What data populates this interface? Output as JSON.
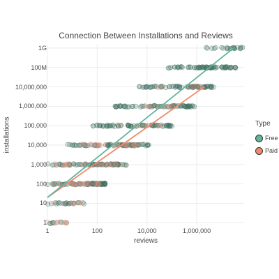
{
  "chart_data": {
    "type": "scatter",
    "title": "Connection Between Installations and Reviews",
    "xlabel": "reviews",
    "ylabel": "installations",
    "x_scale": "log",
    "y_scale": "log",
    "xlim": [
      1,
      80000000
    ],
    "ylim": [
      0.8,
      1500000000
    ],
    "x_ticks": [
      {
        "value": 1,
        "label": "1"
      },
      {
        "value": 100,
        "label": "100"
      },
      {
        "value": 10000,
        "label": "10,000"
      },
      {
        "value": 1000000,
        "label": "1,000,000"
      }
    ],
    "y_ticks": [
      {
        "value": 1,
        "label": "1"
      },
      {
        "value": 10,
        "label": "10"
      },
      {
        "value": 100,
        "label": "100"
      },
      {
        "value": 1000,
        "label": "1,000"
      },
      {
        "value": 10000,
        "label": "10,000"
      },
      {
        "value": 100000,
        "label": "100,000"
      },
      {
        "value": 1000000,
        "label": "1,000,000"
      },
      {
        "value": 10000000,
        "label": "10,000,000"
      },
      {
        "value": 100000000,
        "label": "100M"
      },
      {
        "value": 1000000000,
        "label": "1G"
      }
    ],
    "grid": true,
    "legend": {
      "title": "Type",
      "position": "right"
    },
    "colors": {
      "Free": "#5fb49c",
      "Paid": "#f08a6c",
      "free_point": "#3c6e5f",
      "paid_point": "#d98a7a",
      "grid": "#ebebeb"
    },
    "series": [
      {
        "name": "Free",
        "bands": [
          {
            "y": 1,
            "x_range": [
              1,
              6
            ],
            "density": "low"
          },
          {
            "y": 10,
            "x_range": [
              1,
              30
            ],
            "density": "medium"
          },
          {
            "y": 100,
            "x_range": [
              1,
              250
            ],
            "density": "high"
          },
          {
            "y": 1000,
            "x_range": [
              1,
              1500
            ],
            "density": "high"
          },
          {
            "y": 10000,
            "x_range": [
              5,
              12000
            ],
            "density": "high"
          },
          {
            "y": 100000,
            "x_range": [
              60,
              120000
            ],
            "density": "high"
          },
          {
            "y": 1000000,
            "x_range": [
              500,
              900000
            ],
            "density": "high"
          },
          {
            "y": 10000000,
            "x_range": [
              5000,
              5000000
            ],
            "density": "high"
          },
          {
            "y": 100000000,
            "x_range": [
              60000,
              40000000
            ],
            "density": "high"
          },
          {
            "y": 1000000000,
            "x_range": [
              2000000,
              80000000
            ],
            "density": "medium"
          }
        ],
        "trend_line": {
          "x": [
            1,
            30000000
          ],
          "y": [
            20,
            1000000000
          ]
        }
      },
      {
        "name": "Paid",
        "bands": [
          {
            "y": 1,
            "x_range": [
              1,
              8
            ],
            "density": "low"
          },
          {
            "y": 10,
            "x_range": [
              1,
              25
            ],
            "density": "low"
          },
          {
            "y": 100,
            "x_range": [
              1,
              150
            ],
            "density": "medium"
          },
          {
            "y": 1000,
            "x_range": [
              2,
              1000
            ],
            "density": "medium"
          },
          {
            "y": 10000,
            "x_range": [
              20,
              5000
            ],
            "density": "medium"
          },
          {
            "y": 100000,
            "x_range": [
              200,
              40000
            ],
            "density": "low"
          },
          {
            "y": 1000000,
            "x_range": [
              2000,
              300000
            ],
            "density": "low"
          },
          {
            "y": 10000000,
            "x_range": [
              20000,
              2000000
            ],
            "density": "low"
          }
        ],
        "trend_line": {
          "x": [
            1,
            2000000
          ],
          "y": [
            20,
            10000000
          ]
        }
      }
    ]
  }
}
